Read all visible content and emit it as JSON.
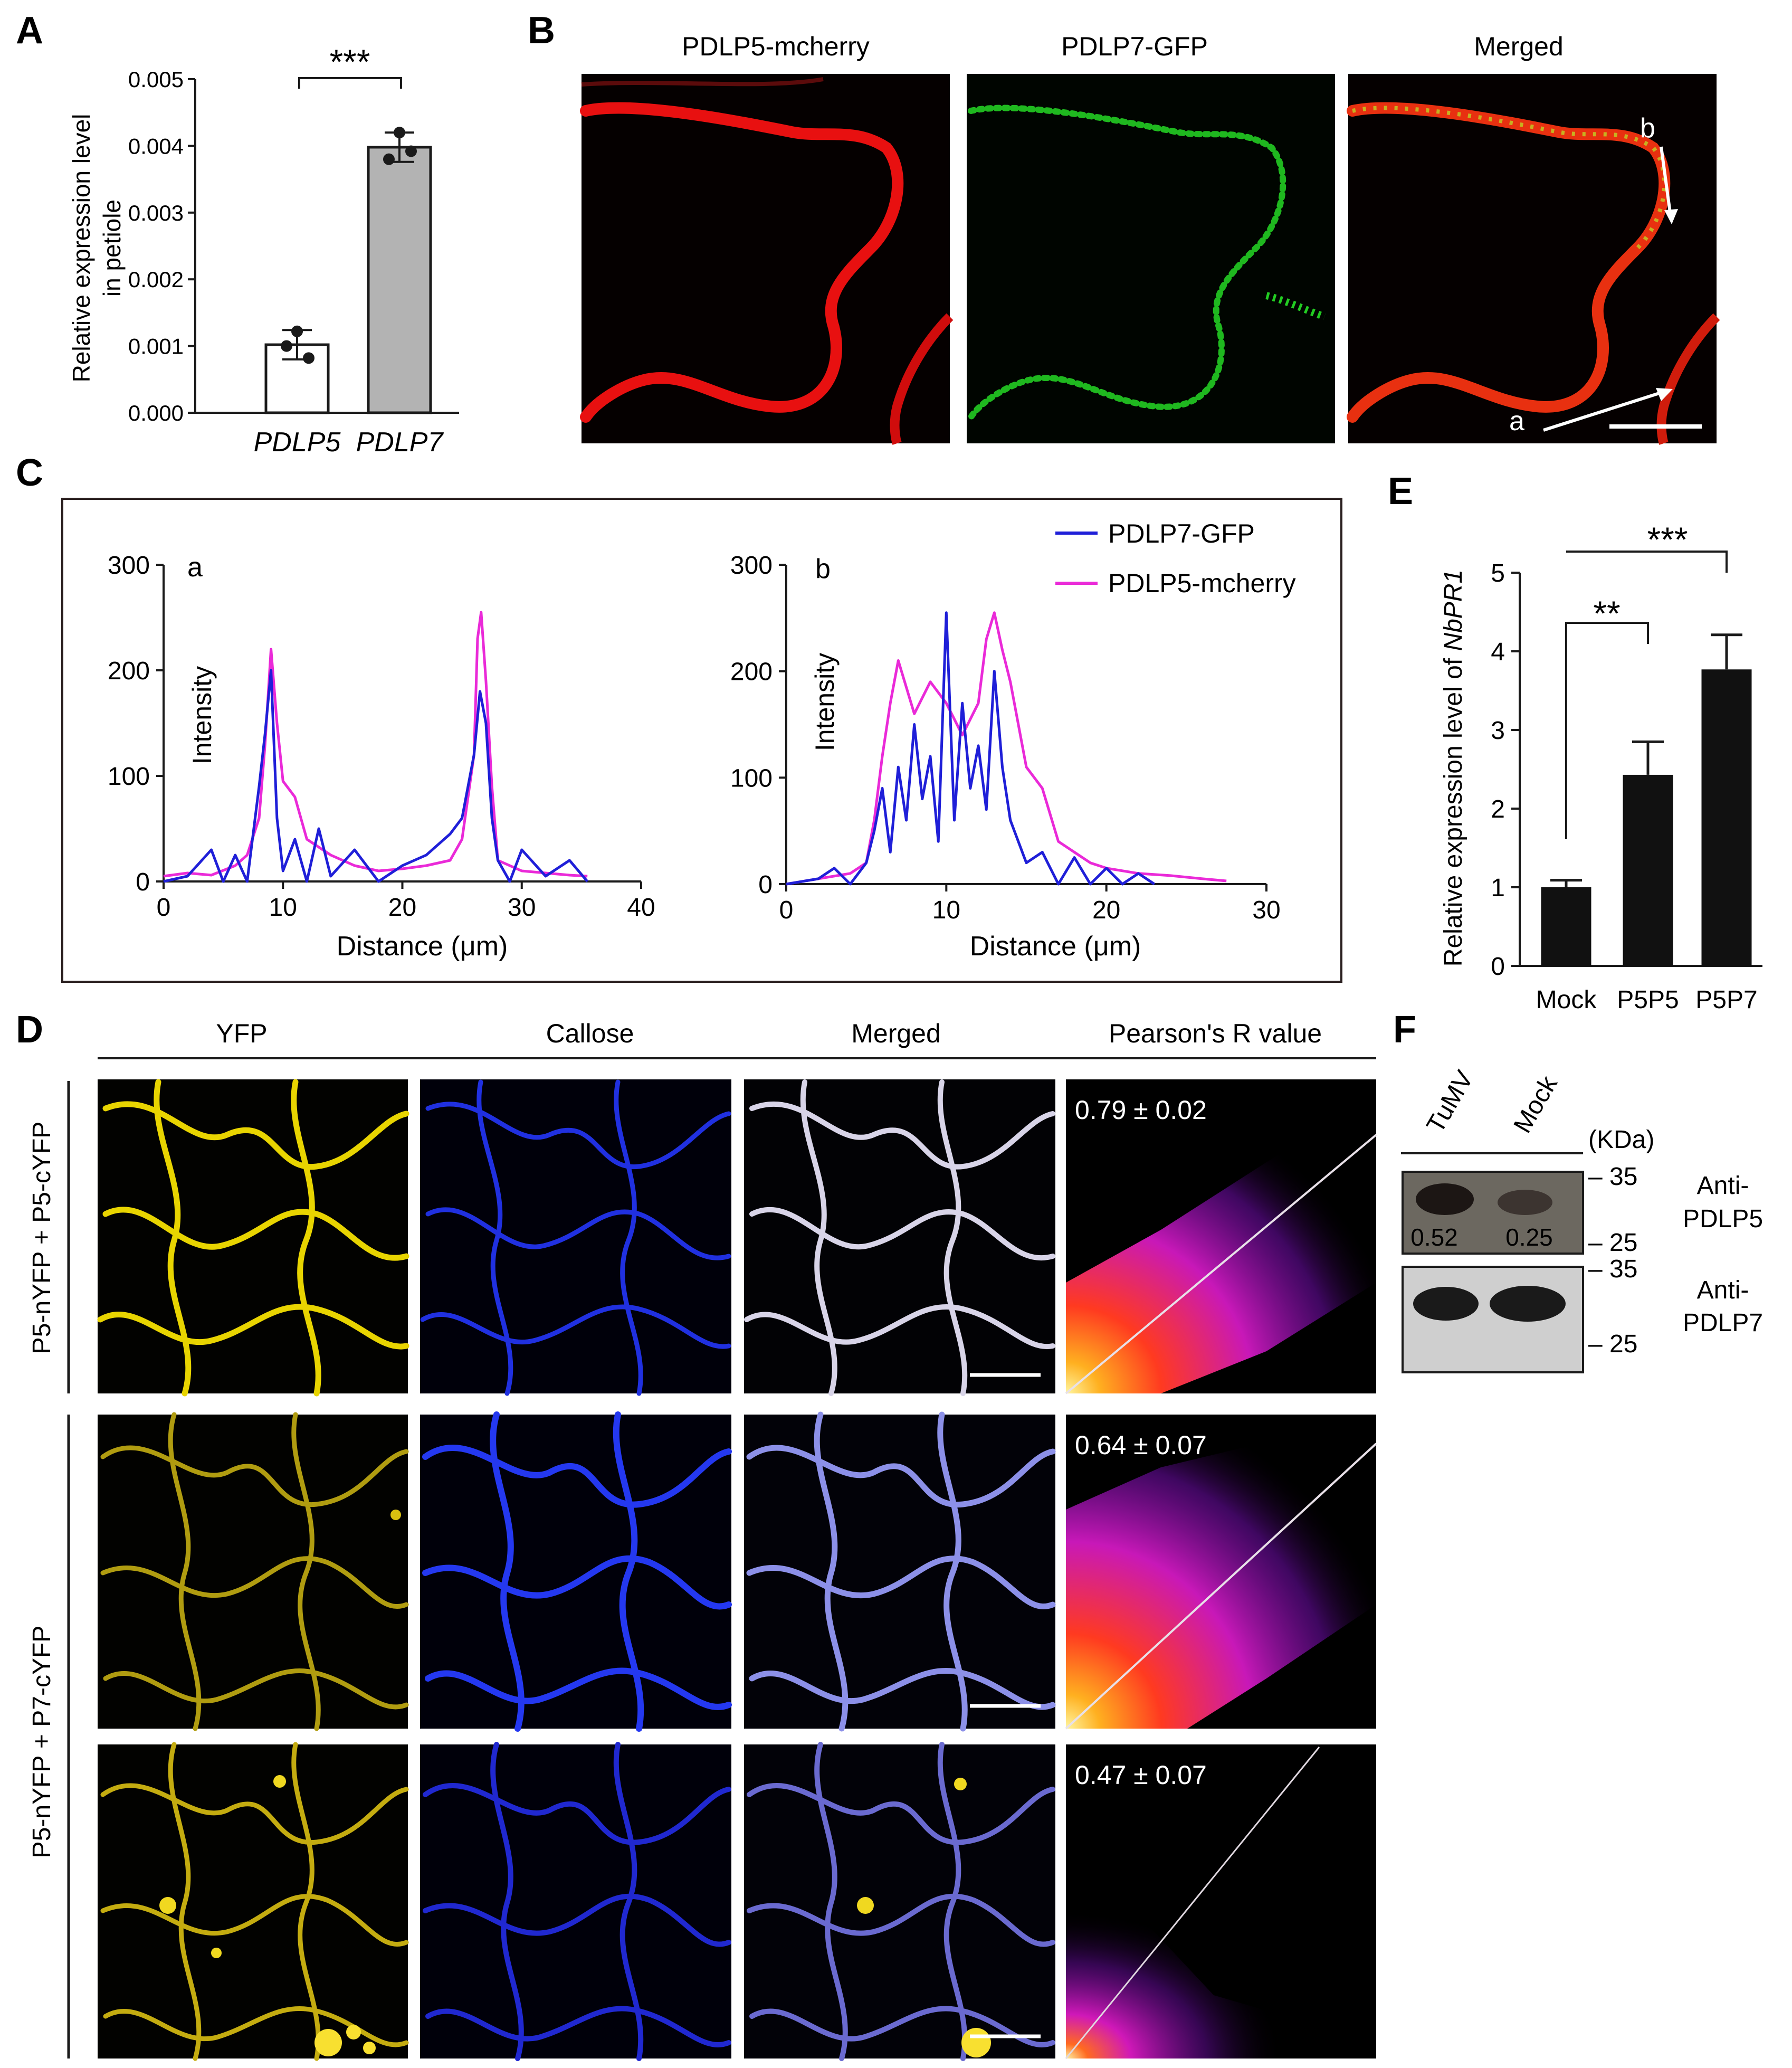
{
  "panel_letters": {
    "A": "A",
    "B": "B",
    "C": "C",
    "D": "D",
    "E": "E",
    "F": "F"
  },
  "panelA": {
    "ylabel_line1": "Relative expression  level",
    "ylabel_line2": "in petiole",
    "yticks": [
      "0.000",
      "0.001",
      "0.002",
      "0.003",
      "0.004",
      "0.005"
    ],
    "categories": [
      "PDLP5",
      "PDLP7"
    ],
    "significance": "***"
  },
  "panelB": {
    "titles": [
      "PDLP5-mcherry",
      "PDLP7-GFP",
      "Merged"
    ],
    "arrow_labels": {
      "a": "a",
      "b": "b"
    }
  },
  "panelC": {
    "legend": [
      "PDLP7-GFP",
      "PDLP5-mcherry"
    ],
    "plot_a": {
      "label": "a",
      "yticks": [
        "0",
        "100",
        "200",
        "300"
      ],
      "xticks": [
        "0",
        "10",
        "20",
        "30",
        "40"
      ],
      "xlabel": "Distance (μm)",
      "ylabel": "Intensity"
    },
    "plot_b": {
      "label": "b",
      "yticks": [
        "0",
        "100",
        "200",
        "300"
      ],
      "xticks": [
        "0",
        "10",
        "20",
        "30"
      ],
      "xlabel": "Distance (μm)",
      "ylabel": "Intensity"
    }
  },
  "panelD": {
    "col_titles": [
      "YFP",
      "Callose",
      "Merged",
      "Pearson's R value"
    ],
    "row_label_1": "P5-nYFP + P5-cYFP",
    "row_label_2": "P5-nYFP + P7-cYFP",
    "pearson_values": [
      "0.79 ± 0.02",
      "0.64 ± 0.07",
      "0.47 ± 0.07"
    ]
  },
  "panelE": {
    "ylabel_prefix": "Relative expression level of ",
    "ylabel_gene": "NbPR1",
    "yticks": [
      "0",
      "1",
      "2",
      "3",
      "4",
      "5"
    ],
    "categories": [
      "Mock",
      "P5P5",
      "P5P7"
    ],
    "sig1": "**",
    "sig2": "***"
  },
  "panelF": {
    "lane_labels": [
      "TuMV",
      "Mock"
    ],
    "unit": "(KDa)",
    "markers": [
      "35",
      "25",
      "35",
      "25"
    ],
    "blot1_values": [
      "0.52",
      "0.25"
    ],
    "antibody1_line1": "Anti-",
    "antibody1_line2": "PDLP5",
    "antibody2_line1": "Anti-",
    "antibody2_line2": "PDLP7"
  },
  "colors": {
    "gfp_line": "#1f1fd8",
    "mcherry_line": "#ea2ad8",
    "bar_grey": "#b3b3b3",
    "bar_black": "#111111"
  },
  "chart_data": [
    {
      "type": "bar",
      "panel": "A",
      "categories": [
        "PDLP5",
        "PDLP7"
      ],
      "values": [
        0.00102,
        0.00398
      ],
      "errors": [
        0.00022,
        0.00022
      ],
      "points": [
        [
          0.00122,
          0.001,
          0.00082
        ],
        [
          0.0042,
          0.0038,
          0.00392
        ]
      ],
      "ylim": [
        0,
        0.005
      ],
      "ylabel": "Relative expression  level in petiole",
      "bar_colors": [
        "#ffffff",
        "#b3b3b3"
      ]
    },
    {
      "type": "line",
      "panel": "C-a",
      "xlabel": "Distance (μm)",
      "ylabel": "Intensity",
      "xlim": [
        0,
        40
      ],
      "ylim": [
        0,
        300
      ],
      "series": [
        {
          "name": "PDLP5-mcherry",
          "x": [
            0,
            2,
            4,
            6,
            7,
            8,
            8.5,
            9,
            9.5,
            10,
            11,
            12,
            14,
            16,
            18,
            20,
            22,
            24,
            25,
            26,
            26.3,
            26.6,
            27,
            27.5,
            28,
            29,
            30,
            32,
            34,
            35.5
          ],
          "y": [
            5,
            8,
            6,
            15,
            25,
            60,
            130,
            220,
            150,
            95,
            80,
            40,
            25,
            15,
            10,
            12,
            15,
            20,
            40,
            120,
            230,
            255,
            190,
            90,
            20,
            15,
            10,
            8,
            6,
            5
          ]
        },
        {
          "name": "PDLP7-GFP",
          "x": [
            0,
            2,
            4,
            5,
            6,
            7,
            8,
            8.5,
            9,
            9.5,
            10,
            11,
            12,
            13,
            14,
            16,
            18,
            20,
            22,
            24,
            25,
            26,
            26.5,
            27,
            27.5,
            28,
            29,
            30,
            32,
            34,
            35.5
          ],
          "y": [
            0,
            5,
            30,
            0,
            25,
            0,
            90,
            140,
            200,
            60,
            10,
            40,
            0,
            50,
            5,
            30,
            0,
            15,
            25,
            45,
            60,
            120,
            180,
            150,
            60,
            20,
            0,
            30,
            5,
            20,
            0
          ]
        }
      ]
    },
    {
      "type": "line",
      "panel": "C-b",
      "xlabel": "Distance (μm)",
      "ylabel": "Intensity",
      "xlim": [
        0,
        30
      ],
      "ylim": [
        0,
        300
      ],
      "series": [
        {
          "name": "PDLP5-mcherry",
          "x": [
            0,
            2,
            4,
            5,
            5.5,
            6,
            6.5,
            7,
            8,
            9,
            10,
            11,
            12,
            12.5,
            13,
            13.5,
            14,
            15,
            16,
            17,
            18,
            19,
            20,
            22,
            24,
            26,
            27.5
          ],
          "y": [
            0,
            5,
            10,
            20,
            60,
            120,
            170,
            210,
            160,
            190,
            170,
            140,
            170,
            230,
            255,
            220,
            190,
            110,
            90,
            40,
            30,
            20,
            15,
            10,
            8,
            5,
            3
          ]
        },
        {
          "name": "PDLP7-GFP",
          "x": [
            0,
            2,
            3,
            4,
            5,
            5.5,
            6,
            6.5,
            7,
            7.5,
            8,
            8.5,
            9,
            9.5,
            10,
            10.5,
            11,
            11.5,
            12,
            12.5,
            13,
            13.5,
            14,
            15,
            16,
            17,
            18,
            19,
            20,
            21,
            22,
            23
          ],
          "y": [
            0,
            5,
            15,
            0,
            20,
            50,
            90,
            30,
            110,
            60,
            150,
            80,
            120,
            40,
            255,
            60,
            170,
            90,
            130,
            70,
            200,
            110,
            60,
            20,
            30,
            0,
            25,
            0,
            15,
            0,
            10,
            0
          ]
        }
      ]
    },
    {
      "type": "bar",
      "panel": "E",
      "categories": [
        "Mock",
        "P5P5",
        "P5P7"
      ],
      "values": [
        1.0,
        2.43,
        3.77
      ],
      "errors": [
        0.09,
        0.42,
        0.44
      ],
      "ylim": [
        0,
        5
      ],
      "ylabel": "Relative expression level of NbPR1"
    }
  ]
}
